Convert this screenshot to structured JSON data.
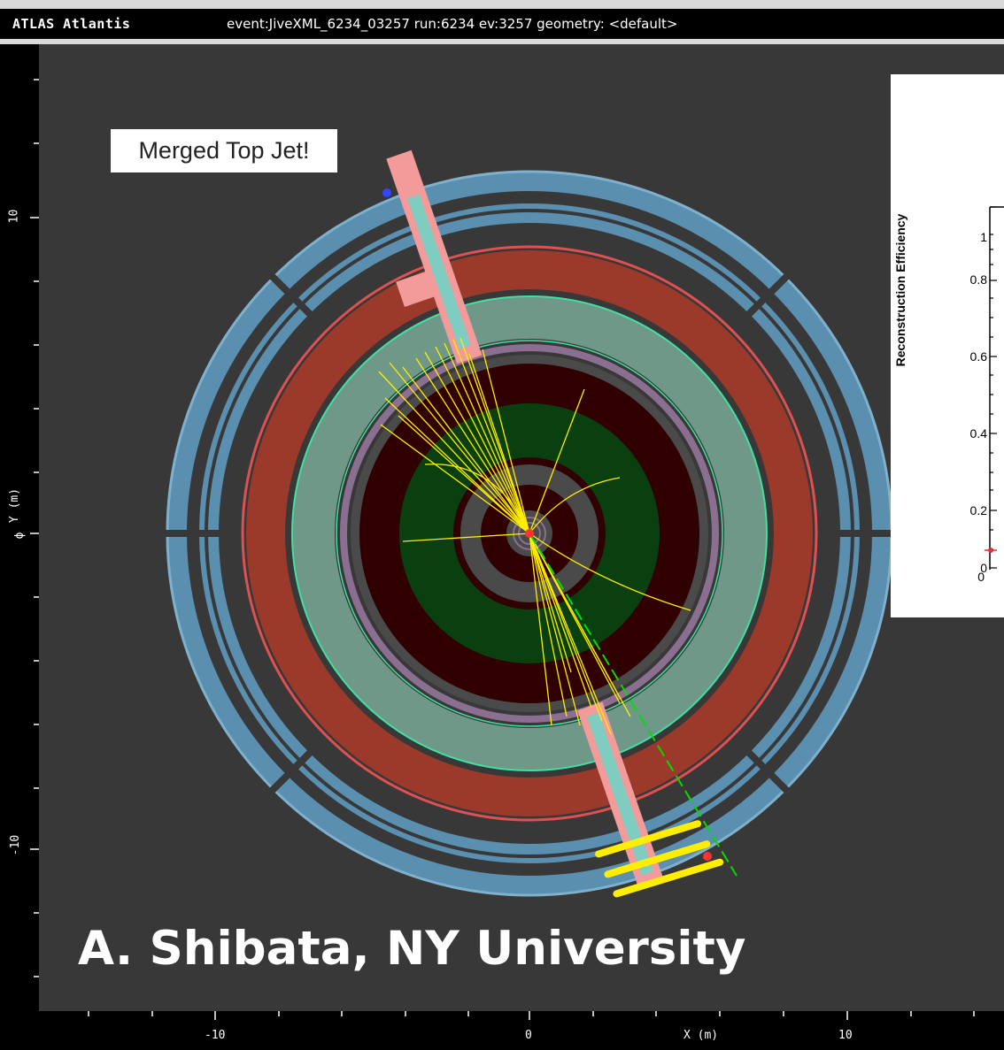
{
  "window": {
    "app_name": "ATLAS Atlantis",
    "event_info": "event:JiveXML_6234_03257 run:6234 ev:3257  geometry: <default>"
  },
  "plot": {
    "y_axis_label": "Y (m)",
    "y_axis_marker": "ϕ",
    "x_axis_label": "X (m)",
    "y_ticks": [
      "10",
      "0",
      "-10"
    ],
    "x_ticks": [
      "-10",
      "0",
      "10"
    ],
    "colors": {
      "background": "#383838",
      "muon_chambers": "#5a8fb0",
      "hadronic_calorimeter": "#9b3a2a",
      "em_calorimeter": "#6f9888",
      "solenoid_ring": "#8a6f90",
      "inner_detector": "#300000",
      "trt_region": "#0a4010",
      "jet_energy": "#f39a9a",
      "tracks": "#ffee00",
      "muon_track": "#00dd00",
      "jet_core": "#7ecdc0"
    }
  },
  "annotation": {
    "text": "Merged Top Jet!"
  },
  "credit": {
    "text": "A. Shibata, NY University"
  },
  "inset_chart": {
    "ylabel": "Reconstruction Efficiency",
    "y_ticks": [
      "1",
      "0.8",
      "0.6",
      "0.4",
      "0.2",
      "0"
    ],
    "x_tick": "0"
  }
}
